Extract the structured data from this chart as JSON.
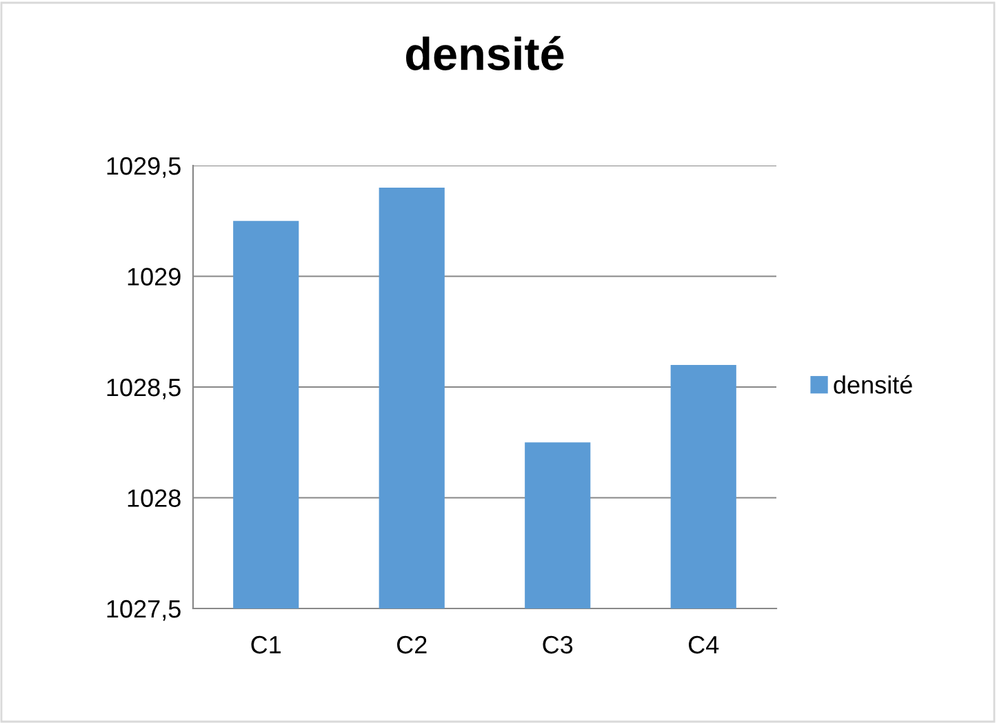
{
  "chart_data": {
    "type": "bar",
    "title": "densité",
    "categories": [
      "C1",
      "C2",
      "C3",
      "C4"
    ],
    "series": [
      {
        "name": "densité",
        "color": "#5b9bd5",
        "values": [
          1029.25,
          1029.4,
          1028.25,
          1028.6
        ]
      }
    ],
    "ylim": [
      1027.5,
      1029.5
    ],
    "yticks": [
      {
        "value": 1027.5,
        "label": "1027,5"
      },
      1028,
      {
        "value": 1028.5,
        "label": "1028,5"
      },
      1029,
      {
        "value": 1029.5,
        "label": "1029,5"
      }
    ],
    "grid": "y",
    "legend": "right"
  }
}
